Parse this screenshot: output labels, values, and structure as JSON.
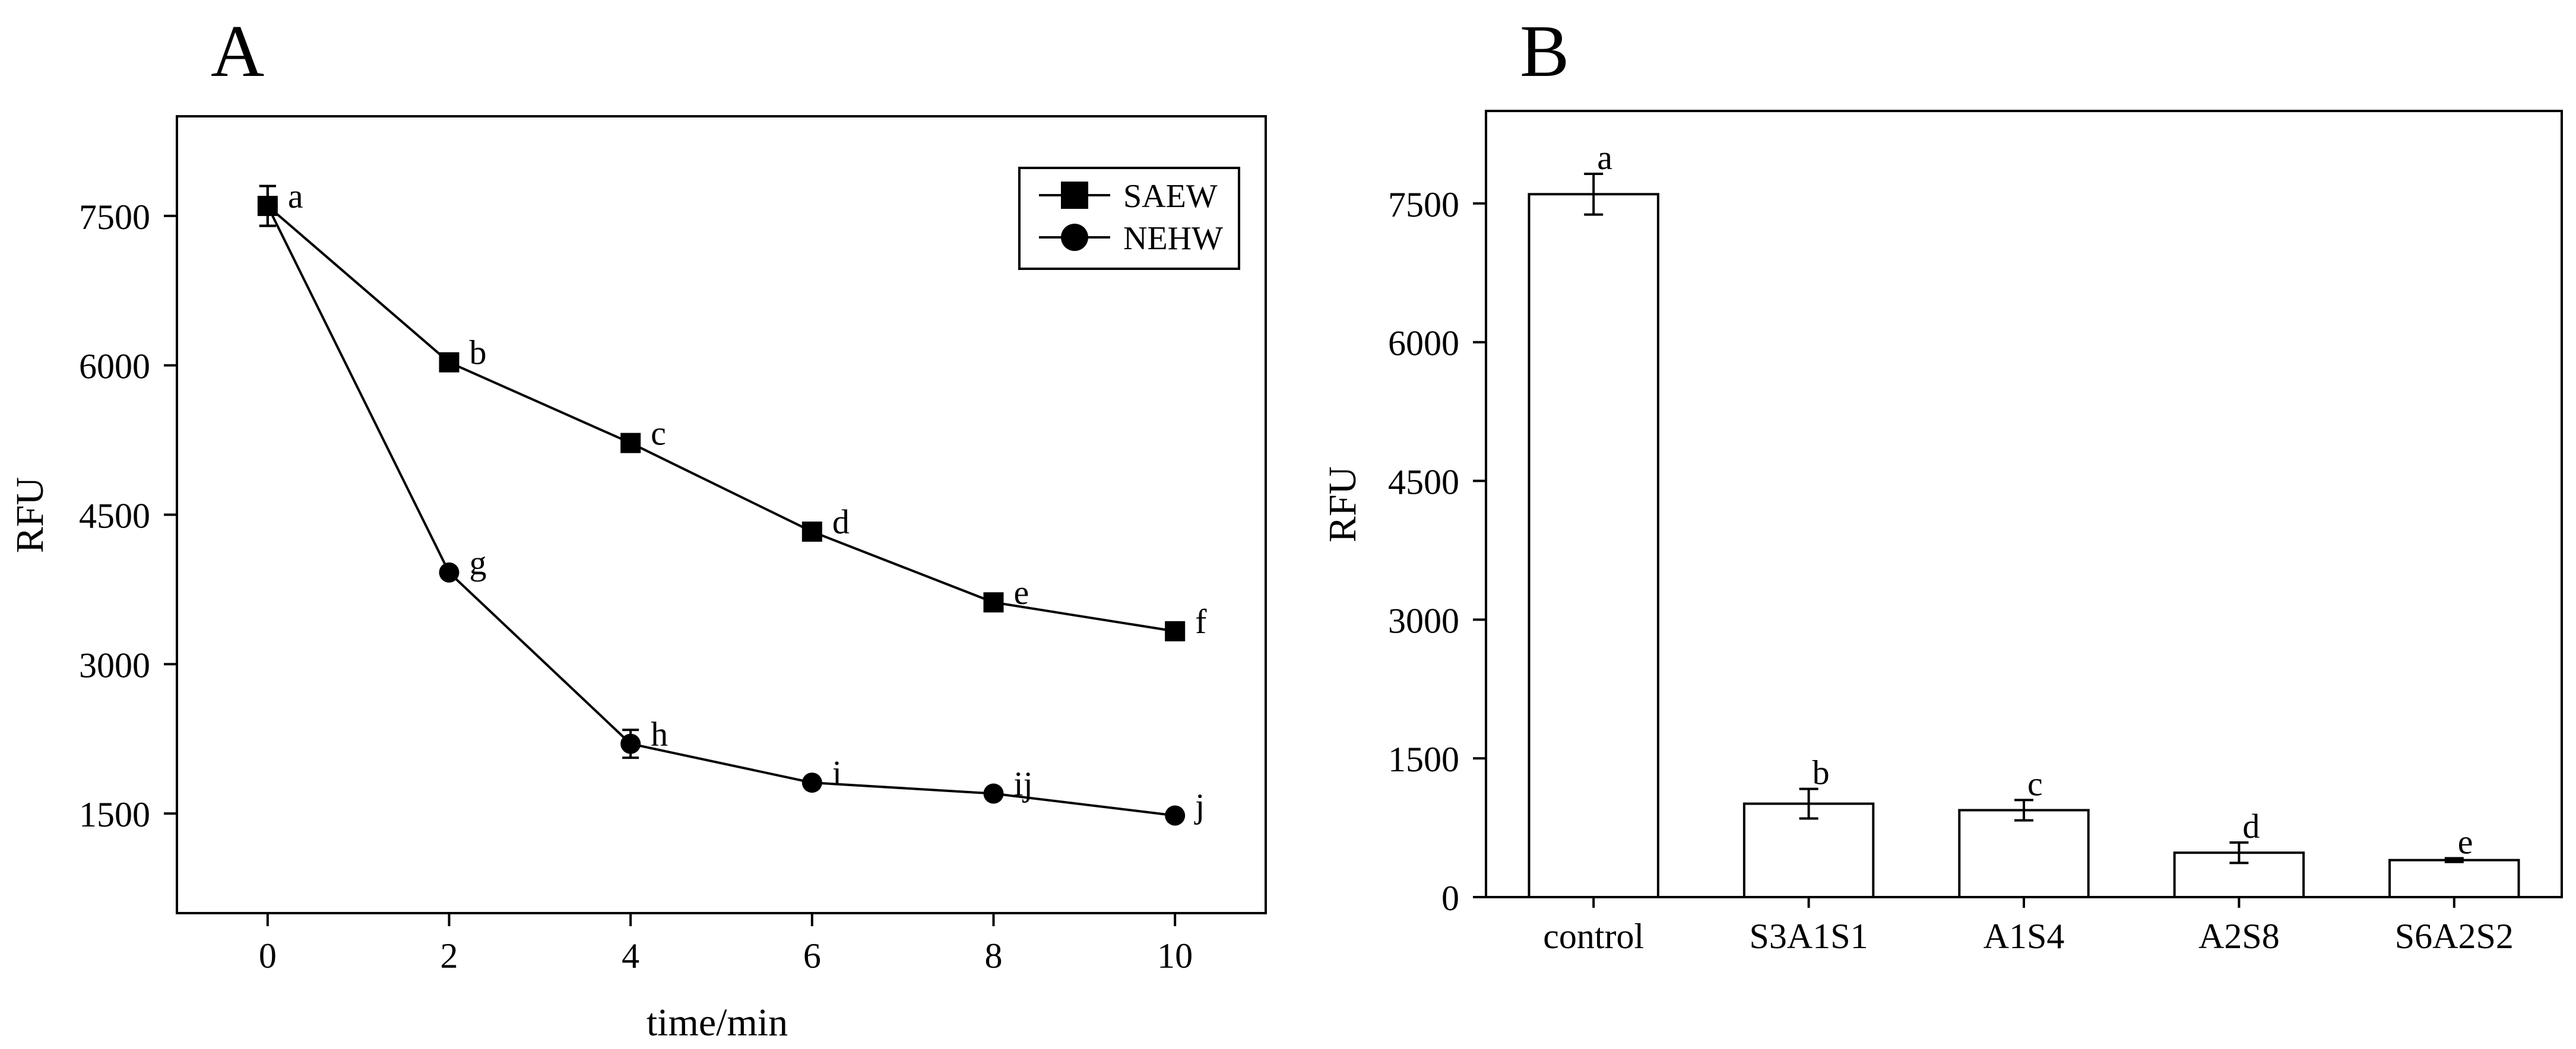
{
  "chart_data": [
    {
      "panel_label": "A",
      "type": "line",
      "xlabel": "time/min",
      "ylabel": "RFU",
      "xlim": [
        -1,
        11
      ],
      "ylim": [
        500,
        8500
      ],
      "xticks": [
        0,
        2,
        4,
        6,
        8,
        10
      ],
      "yticks": [
        1500,
        3000,
        4500,
        6000,
        7500
      ],
      "legend_position": "top-right",
      "series": [
        {
          "name": "SAEW",
          "marker": "square",
          "x": [
            0,
            2,
            4,
            6,
            8,
            10
          ],
          "values": [
            7600,
            6030,
            5220,
            4330,
            3620,
            3330
          ],
          "errors": [
            200,
            0,
            0,
            0,
            0,
            0
          ],
          "labels": [
            "a",
            "b",
            "c",
            "d",
            "e",
            "f"
          ]
        },
        {
          "name": "NEHW",
          "marker": "circle",
          "x": [
            0,
            2,
            4,
            6,
            8,
            10
          ],
          "values": [
            7600,
            3920,
            2200,
            1810,
            1700,
            1480
          ],
          "errors": [
            200,
            0,
            140,
            0,
            0,
            0
          ],
          "labels": [
            "",
            "g",
            "h",
            "i",
            "ij",
            "j"
          ]
        }
      ]
    },
    {
      "panel_label": "B",
      "type": "bar",
      "ylabel": "RFU",
      "ylim": [
        0,
        8500
      ],
      "yticks": [
        0,
        1500,
        3000,
        4500,
        6000,
        7500
      ],
      "categories": [
        "control",
        "S3A1S1",
        "A1S4",
        "A2S8",
        "S6A2S2"
      ],
      "values": [
        7600,
        1010,
        940,
        480,
        400
      ],
      "errors": [
        220,
        160,
        110,
        110,
        20
      ],
      "labels": [
        "a",
        "b",
        "c",
        "d",
        "e"
      ]
    }
  ]
}
